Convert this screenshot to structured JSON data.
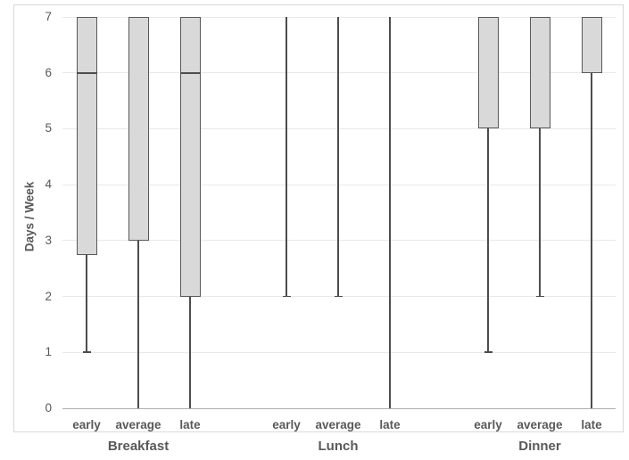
{
  "page": {
    "background": "#ffffff"
  },
  "chart_data": {
    "type": "boxplot",
    "title": "",
    "xlabel": "",
    "ylabel": "Days / Week",
    "ylim": [
      0,
      7
    ],
    "yticks": [
      0,
      1,
      2,
      3,
      4,
      5,
      6,
      7
    ],
    "grid": "horizontal",
    "legend": "none",
    "groups": [
      {
        "label": "Breakfast",
        "boxes": [
          {
            "label": "early",
            "whisker_low": 1,
            "q1": 2.75,
            "median": 6,
            "q3": 7,
            "whisker_high": 7
          },
          {
            "label": "average",
            "whisker_low": 0,
            "q1": 3,
            "median": null,
            "q3": 7,
            "whisker_high": 7
          },
          {
            "label": "late",
            "whisker_low": 0,
            "q1": 2,
            "median": 6,
            "q3": 7,
            "whisker_high": 7
          }
        ]
      },
      {
        "label": "Lunch",
        "boxes": [
          {
            "label": "early",
            "whisker_low": 2,
            "q1": 7,
            "median": 7,
            "q3": 7,
            "whisker_high": 7
          },
          {
            "label": "average",
            "whisker_low": 2,
            "q1": 7,
            "median": 7,
            "q3": 7,
            "whisker_high": 7
          },
          {
            "label": "late",
            "whisker_low": 0,
            "q1": 7,
            "median": 7,
            "q3": 7,
            "whisker_high": 7
          }
        ]
      },
      {
        "label": "Dinner",
        "boxes": [
          {
            "label": "early",
            "whisker_low": 1,
            "q1": 5,
            "median": null,
            "q3": 7,
            "whisker_high": 7
          },
          {
            "label": "average",
            "whisker_low": 2,
            "q1": 5,
            "median": null,
            "q3": 7,
            "whisker_high": 7
          },
          {
            "label": "late",
            "whisker_low": 0,
            "q1": 6,
            "median": null,
            "q3": 7,
            "whisker_high": 7
          }
        ]
      }
    ],
    "colors": {
      "box_fill": "#d9d9d9",
      "box_border": "#595959",
      "median": "#4d4d4d",
      "whisker": "#4d4d4d",
      "gridline": "#e9e9e9",
      "axis_line": "#adadad",
      "label": "#595959",
      "chart_border": "#d9d9d9"
    }
  }
}
